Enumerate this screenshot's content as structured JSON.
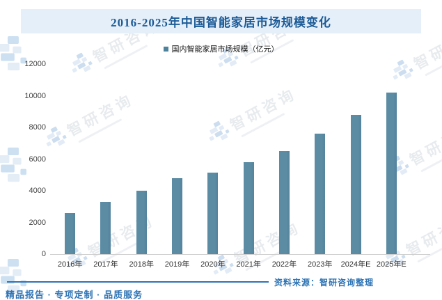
{
  "title": {
    "text": "2016-2025年中国智能家居市场规模变化"
  },
  "legend": {
    "label": "国内智能家居市场规模（亿元）"
  },
  "chart_data": {
    "type": "bar",
    "title": "2016-2025年中国智能家居市场规模变化",
    "legend_entries": [
      "国内智能家居市场规模（亿元）"
    ],
    "categories": [
      "2016年",
      "2017年",
      "2018年",
      "2019年",
      "2020年",
      "2021年",
      "2022年",
      "2023年",
      "2024年E",
      "2025年E"
    ],
    "values": [
      2600,
      3300,
      4000,
      4800,
      5150,
      5800,
      6500,
      7600,
      8800,
      10200
    ],
    "unit": "亿元",
    "xlabel": "",
    "ylabel": "",
    "ylim": [
      0,
      12000
    ],
    "yticks": [
      0,
      2000,
      4000,
      6000,
      8000,
      10000,
      12000
    ],
    "grid": false,
    "legend_position": "top-center",
    "bar_color": "#5c8ca4"
  },
  "footer": {
    "source": "资料来源：智研咨询整理",
    "tagline": "精品报告 · 专项定制 · 品质服务"
  },
  "watermark": {
    "brand": "智研咨询"
  },
  "colors": {
    "title_text": "#1b5a96",
    "title_band_bg": "#e4eff9",
    "bar": "#5c8ca4",
    "bar_edge": "#54849d",
    "legend_swatch": "#4e819b",
    "footer_blue": "#2e74b5",
    "axis_line": "#cbcbcb",
    "tick_text": "#404040"
  }
}
